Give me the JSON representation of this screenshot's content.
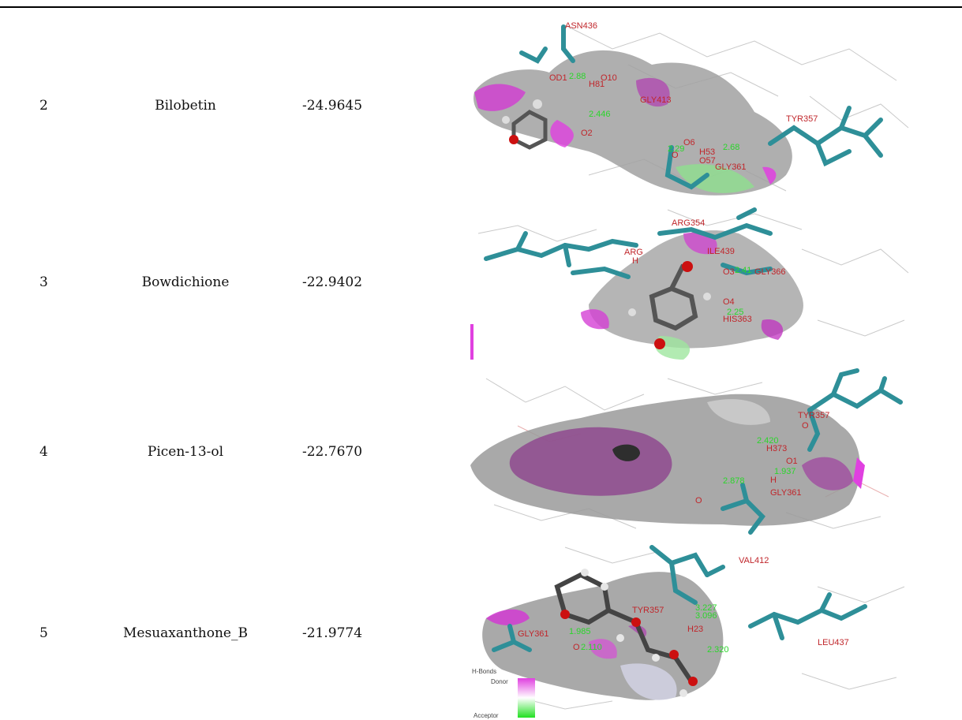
{
  "rows": [
    {
      "no": "2",
      "name": "Bilobetin",
      "score": "-24.9645",
      "labels": [
        "ASN436",
        "GLY413",
        "TYR357",
        "GLY361",
        "OD1",
        "O10",
        "H81",
        "O2",
        "O6",
        "H53",
        "O57",
        "O"
      ],
      "hbonds": [
        "2.88",
        "2.446",
        "2.29",
        "2.68"
      ]
    },
    {
      "no": "3",
      "name": "Bowdichione",
      "score": "-22.9402",
      "labels": [
        "ARG354",
        "ARG",
        "H",
        "ILE439",
        "GLY366",
        "O3",
        "O4",
        "HIS363"
      ],
      "hbonds": [
        "2.41",
        "2.25"
      ]
    },
    {
      "no": "4",
      "name": "Picen-13-ol",
      "score": "-22.7670",
      "labels": [
        "TYR357",
        "O",
        "H373",
        "O1",
        "H",
        "GLY361",
        "O"
      ],
      "hbonds": [
        "2.420",
        "1.937",
        "2.878"
      ]
    },
    {
      "no": "5",
      "name": "Mesuaxanthone_B",
      "score": "-21.9774",
      "labels": [
        "VAL412",
        "TYR357",
        "H23",
        "LEU437",
        "GLY361",
        "O"
      ],
      "hbonds": [
        "3.227",
        "3.096",
        "1.985",
        "2.110",
        "2.320"
      ],
      "legend": {
        "title": "H-Bonds",
        "donor": "Donor",
        "acceptor": "Acceptor"
      }
    }
  ],
  "colors": {
    "carbon_stick": "#2e8f98",
    "donor": "#e040e0",
    "acceptor": "#22e022",
    "surface": "#8a8a8a",
    "residue_label": "#c0262b",
    "hbond_label": "#2bd62b"
  }
}
